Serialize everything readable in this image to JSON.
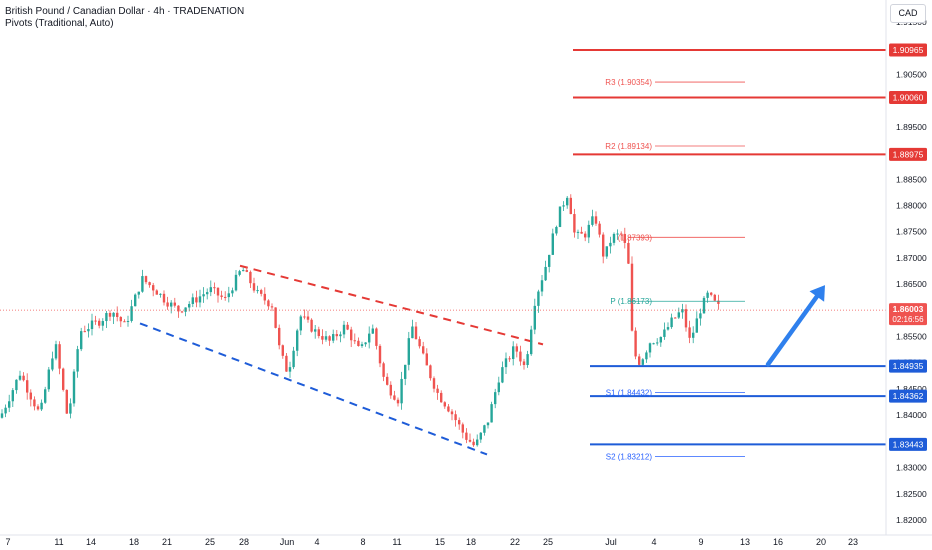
{
  "header": {
    "title": "British Pound / Canadian Dollar · 4h · TRADENATION",
    "indicator": "Pivots (Traditional, Auto)",
    "currency": "CAD"
  },
  "colors": {
    "up": "#26a69a",
    "down": "#ef5350",
    "ink": "#131722",
    "resistance": "#e53935",
    "support": "#1e5cd8",
    "pivot_r": "#ef5350",
    "pivot_s": "#2962ff",
    "pivot_p": "#26a69a",
    "arrow": "#2f80ed"
  },
  "chart_data": {
    "type": "candlestick",
    "timeframe": "4h",
    "ylim": [
      1.8185,
      1.9135
    ],
    "y_ticks": [
      "1.91500",
      "1.91000",
      "1.90500",
      "1.90000",
      "1.89500",
      "1.89000",
      "1.88500",
      "1.88000",
      "1.87500",
      "1.87000",
      "1.86500",
      "1.86000",
      "1.85500",
      "1.85000",
      "1.84500",
      "1.84000",
      "1.83500",
      "1.83000",
      "1.82500",
      "1.82000"
    ],
    "x_ticks": [
      "7",
      "11",
      "14",
      "18",
      "21",
      "25",
      "28",
      "Jun",
      "4",
      "8",
      "11",
      "15",
      "18",
      "22",
      "25",
      "Jul",
      "4",
      "9",
      "13",
      "16",
      "20",
      "23"
    ],
    "current_price": {
      "label": "1.86003",
      "countdown": "02:16:56",
      "value": 1.86003
    },
    "resistance_levels": [
      {
        "value": 1.90965,
        "label": "1.90965"
      },
      {
        "value": 1.9006,
        "label": "1.90060"
      },
      {
        "value": 1.88975,
        "label": "1.88975"
      }
    ],
    "support_levels": [
      {
        "value": 1.84935,
        "label": "1.84935"
      },
      {
        "value": 1.84362,
        "label": "1.84362"
      },
      {
        "value": 1.83443,
        "label": "1.83443"
      }
    ],
    "pivots": [
      {
        "name": "R3",
        "value": 1.90354,
        "label": "R3 (1.90354)"
      },
      {
        "name": "R2",
        "value": 1.89134,
        "label": "R2 (1.89134)"
      },
      {
        "name": "R1",
        "value": 1.87393,
        "label": "(1.87393)"
      },
      {
        "name": "P",
        "value": 1.86173,
        "label": "P (1.86173)"
      },
      {
        "name": "S1",
        "value": 1.84432,
        "label": "S1 (1.84432)"
      },
      {
        "name": "S2",
        "value": 1.83212,
        "label": "S2 (1.83212)"
      }
    ],
    "channel": {
      "upper": [
        [
          1.8685,
          240
        ],
        [
          1.8535,
          543
        ]
      ],
      "lower": [
        [
          1.8575,
          140
        ],
        [
          1.8325,
          487
        ]
      ]
    },
    "price_path": [
      [
        0,
        1.8395
      ],
      [
        20,
        1.848
      ],
      [
        40,
        1.84
      ],
      [
        55,
        1.854
      ],
      [
        68,
        1.839
      ],
      [
        80,
        1.856
      ],
      [
        100,
        1.858
      ],
      [
        112,
        1.86
      ],
      [
        125,
        1.857
      ],
      [
        142,
        1.866
      ],
      [
        155,
        1.864
      ],
      [
        165,
        1.862
      ],
      [
        178,
        1.86
      ],
      [
        195,
        1.862
      ],
      [
        210,
        1.864
      ],
      [
        225,
        1.862
      ],
      [
        242,
        1.868
      ],
      [
        258,
        1.863
      ],
      [
        272,
        1.861
      ],
      [
        280,
        1.852
      ],
      [
        288,
        1.848
      ],
      [
        300,
        1.859
      ],
      [
        315,
        1.856
      ],
      [
        330,
        1.854
      ],
      [
        345,
        1.857
      ],
      [
        360,
        1.852
      ],
      [
        372,
        1.857
      ],
      [
        385,
        1.846
      ],
      [
        398,
        1.843
      ],
      [
        412,
        1.857
      ],
      [
        425,
        1.85
      ],
      [
        438,
        1.844
      ],
      [
        450,
        1.841
      ],
      [
        465,
        1.836
      ],
      [
        475,
        1.834
      ],
      [
        488,
        1.839
      ],
      [
        500,
        1.848
      ],
      [
        515,
        1.853
      ],
      [
        525,
        1.849
      ],
      [
        535,
        1.862
      ],
      [
        545,
        1.868
      ],
      [
        558,
        1.878
      ],
      [
        568,
        1.8825
      ],
      [
        575,
        1.874
      ],
      [
        585,
        1.8745
      ],
      [
        595,
        1.878
      ],
      [
        604,
        1.87
      ],
      [
        612,
        1.874
      ],
      [
        622,
        1.8745
      ],
      [
        628,
        1.87
      ],
      [
        633,
        1.852
      ],
      [
        640,
        1.85
      ],
      [
        650,
        1.854
      ],
      [
        662,
        1.855
      ],
      [
        672,
        1.858
      ],
      [
        682,
        1.86
      ],
      [
        690,
        1.854
      ],
      [
        700,
        1.86
      ],
      [
        708,
        1.863
      ],
      [
        716,
        1.861
      ],
      [
        722,
        1.86
      ]
    ],
    "projection_arrow": {
      "from": [
        768,
        1.8497
      ],
      "to": [
        825,
        1.8648
      ]
    }
  }
}
